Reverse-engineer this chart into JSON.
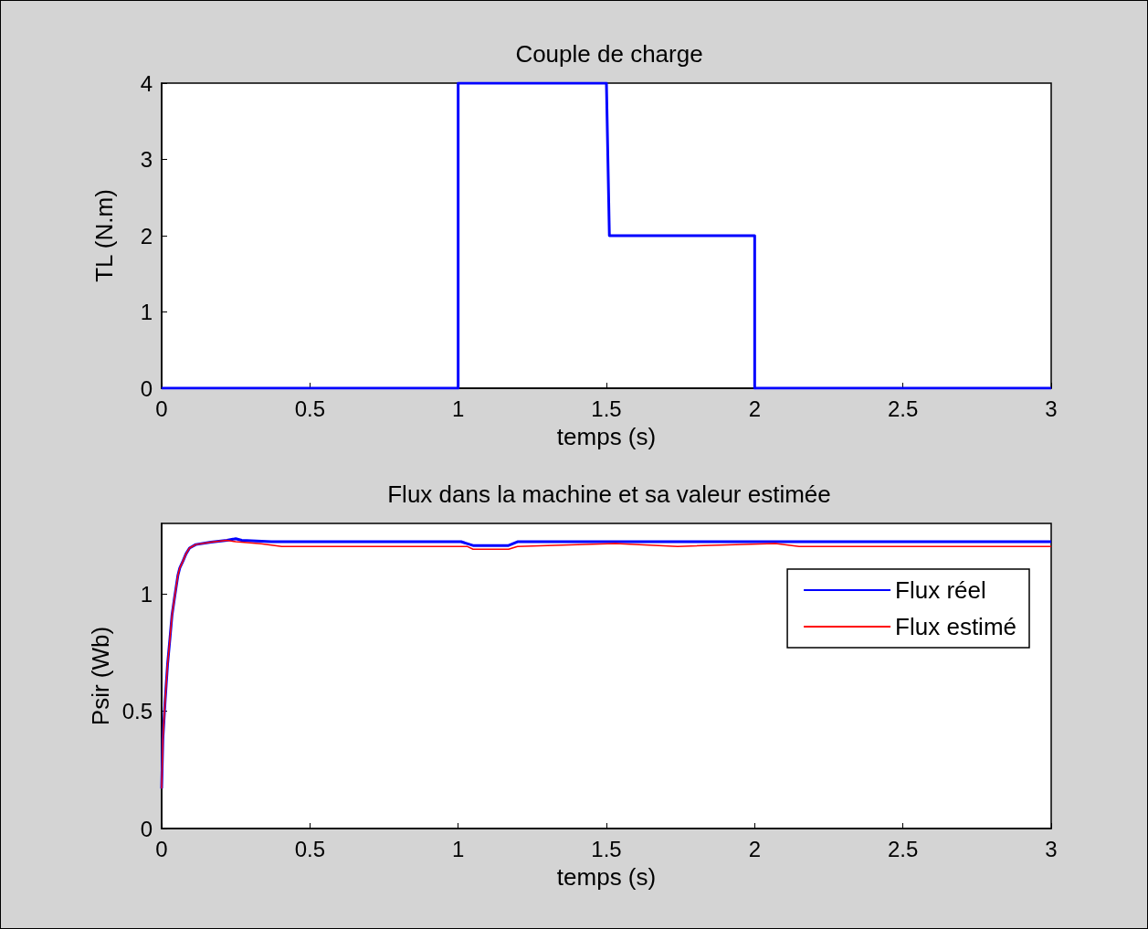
{
  "chart_data": [
    {
      "type": "line",
      "title": "Couple de charge",
      "xlabel": "temps (s)",
      "ylabel": "TL (N.m)",
      "series": [
        {
          "color": "#0000ff",
          "x": [
            0,
            1,
            1,
            1.5,
            1.51,
            2,
            2,
            3
          ],
          "values": [
            0,
            0,
            4,
            4,
            2,
            2,
            0,
            0
          ]
        }
      ],
      "xlim": [
        0,
        3
      ],
      "xticks": [
        0,
        0.5,
        1,
        1.5,
        2,
        2.5,
        3
      ],
      "ylim": [
        0,
        4
      ],
      "yticks": [
        0,
        1,
        2,
        3,
        4
      ],
      "grid": false,
      "legend": false,
      "marker": "none",
      "line_style": "solid"
    },
    {
      "type": "line",
      "title": "Flux dans la machine et sa valeur estimée",
      "xlabel": "temps (s)",
      "ylabel": "Psir (Wb)",
      "series": [
        {
          "name": "Flux réel",
          "color": "#0000ff",
          "x": [
            0,
            0.004,
            0.012,
            0.02,
            0.028,
            0.035,
            0.043,
            0.049,
            0.055,
            0.061,
            0.072,
            0.082,
            0.094,
            0.115,
            0.166,
            0.22,
            0.25,
            0.27,
            0.37,
            1.01,
            1.05,
            1.17,
            1.2,
            3
          ],
          "values": [
            0.17,
            0.38,
            0.55,
            0.7,
            0.81,
            0.91,
            0.98,
            1.03,
            1.08,
            1.11,
            1.14,
            1.17,
            1.195,
            1.21,
            1.22,
            1.228,
            1.235,
            1.228,
            1.222,
            1.222,
            1.206,
            1.206,
            1.222,
            1.222
          ]
        },
        {
          "name": "Flux estimé",
          "color": "#ff0000",
          "x": [
            0,
            0.004,
            0.012,
            0.02,
            0.028,
            0.035,
            0.043,
            0.049,
            0.055,
            0.061,
            0.072,
            0.082,
            0.094,
            0.115,
            0.166,
            0.22,
            0.25,
            0.335,
            0.405,
            1.03,
            1.05,
            1.17,
            1.2,
            1.53,
            1.74,
            2.07,
            2.15,
            3
          ],
          "values": [
            0.17,
            0.38,
            0.55,
            0.7,
            0.81,
            0.91,
            0.98,
            1.03,
            1.08,
            1.11,
            1.14,
            1.17,
            1.195,
            1.21,
            1.22,
            1.228,
            1.222,
            1.213,
            1.202,
            1.202,
            1.19,
            1.19,
            1.202,
            1.214,
            1.202,
            1.214,
            1.202,
            1.202
          ]
        }
      ],
      "xlim": [
        0,
        3
      ],
      "xticks": [
        0,
        0.5,
        1,
        1.5,
        2,
        2.5,
        3
      ],
      "ylim": [
        0,
        1.3
      ],
      "yticks": [
        0,
        0.5,
        1
      ],
      "grid": false,
      "legend": "top right",
      "marker": "none",
      "line_style": "solid"
    }
  ]
}
